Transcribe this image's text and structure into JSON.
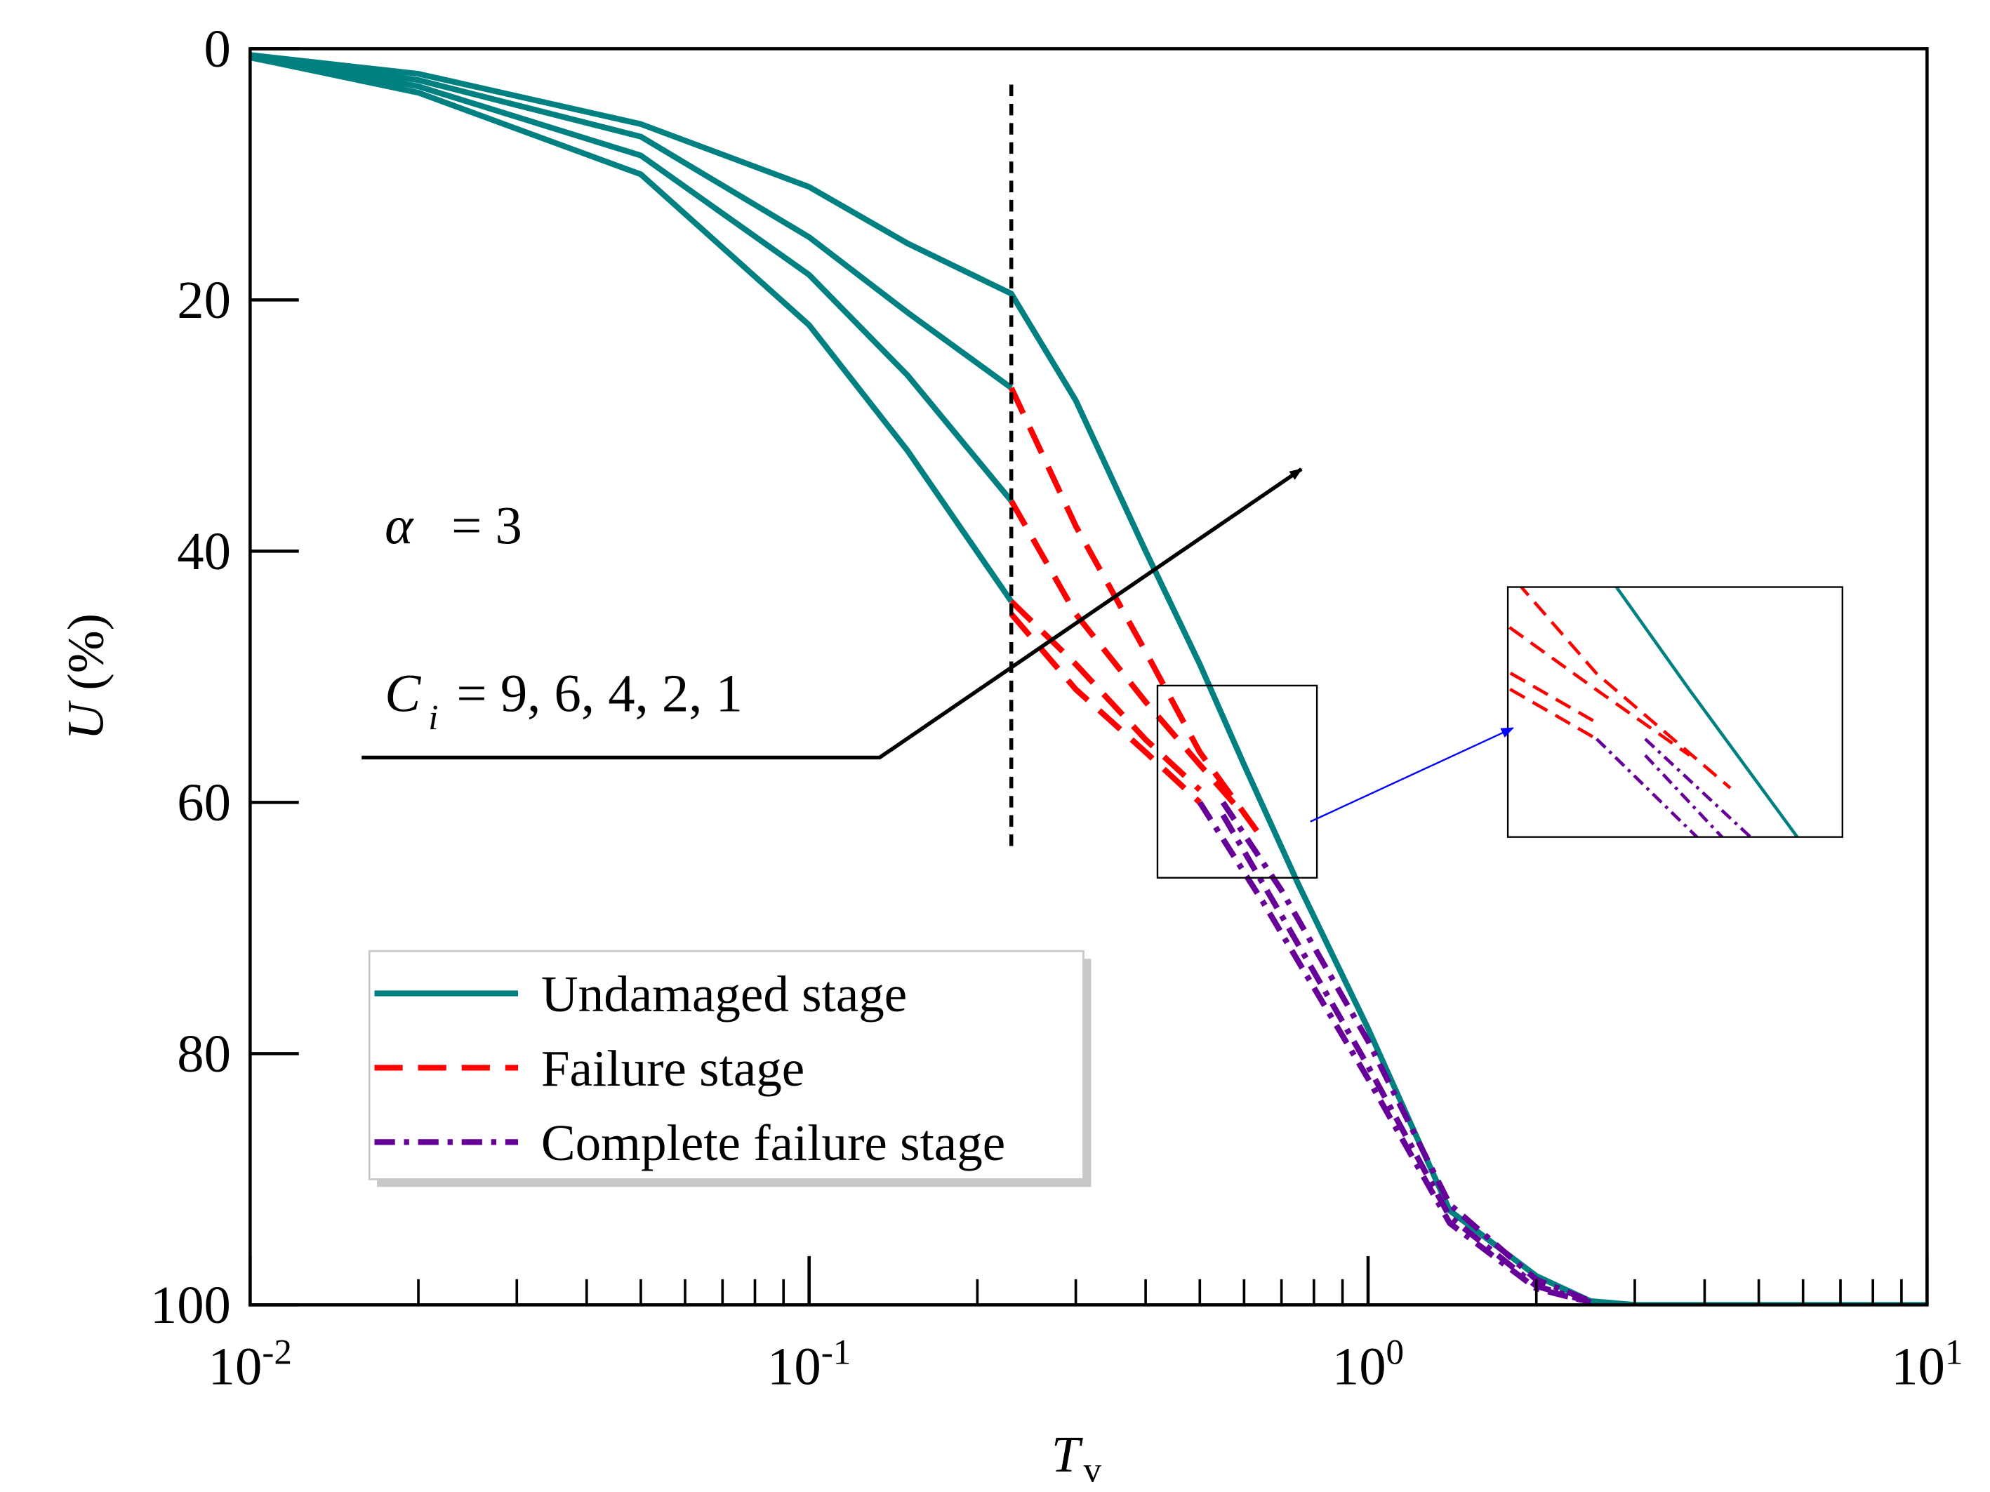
{
  "chart_data": {
    "type": "line",
    "xlabel": {
      "main": "T",
      "sub": "v"
    },
    "ylabel": {
      "main": "U",
      "rest": "(%)"
    },
    "xscale": "log",
    "xlim": [
      0.01,
      10
    ],
    "ylim": [
      0,
      100
    ],
    "y_inverted": true,
    "xticks": [
      {
        "value": 0.01,
        "label": "10",
        "exponent": "-2"
      },
      {
        "value": 0.1,
        "label": "10",
        "exponent": "-1"
      },
      {
        "value": 1,
        "label": "10",
        "exponent": "0"
      },
      {
        "value": 10,
        "label": "10",
        "exponent": "1"
      }
    ],
    "xminor": [
      0.02,
      0.03,
      0.04,
      0.05,
      0.06,
      0.07,
      0.08,
      0.09,
      0.2,
      0.3,
      0.4,
      0.5,
      0.6,
      0.7,
      0.8,
      0.9,
      2,
      3,
      4,
      5,
      6,
      7,
      8,
      9
    ],
    "yticks": [
      0,
      20,
      40,
      60,
      80,
      100
    ],
    "vline_x": 0.23,
    "annotations": {
      "alpha": "α",
      "alpha_value": "= 3",
      "c": "C",
      "c_sub": "i",
      "c_values": "= 9, 6, 4, 2, 1"
    },
    "zoom": {
      "xlim": [
        0.42,
        0.81
      ],
      "ylim": [
        50.7,
        66
      ]
    },
    "series": [
      {
        "name": "Undamaged stage",
        "color": "#008080",
        "dash": "solid",
        "curves": [
          {
            "x": [
              0.01,
              0.02,
              0.05,
              0.1,
              0.15,
              0.23,
              0.3,
              0.4,
              0.5,
              0.6,
              0.75,
              1.0,
              1.4,
              2,
              2.5,
              3,
              10
            ],
            "values": [
              0.5,
              2,
              6,
              11,
              15.5,
              19.5,
              28,
              40,
              49,
              57,
              66.5,
              78,
              92.5,
              97.7,
              99.7,
              100,
              100
            ]
          },
          {
            "x": [
              0.01,
              0.02,
              0.05,
              0.1,
              0.15,
              0.23
            ],
            "values": [
              0.5,
              2.5,
              7,
              15,
              21,
              27
            ]
          },
          {
            "x": [
              0.01,
              0.02,
              0.05,
              0.1,
              0.15,
              0.23
            ],
            "values": [
              0.6,
              3,
              8.5,
              18,
              26,
              36
            ]
          },
          {
            "x": [
              0.01,
              0.02,
              0.05,
              0.1,
              0.15,
              0.23
            ],
            "values": [
              0.7,
              3.5,
              10,
              22,
              32,
              44
            ]
          }
        ]
      },
      {
        "name": "Failure stage",
        "color": "#ff0000",
        "dash": "dash",
        "curves": [
          {
            "x": [
              0.23,
              0.3,
              0.4,
              0.5,
              0.65
            ],
            "values": [
              27,
              38,
              48,
              56,
              63
            ]
          },
          {
            "x": [
              0.23,
              0.3,
              0.4,
              0.5,
              0.6
            ],
            "values": [
              36,
              45,
              52,
              57,
              61
            ]
          },
          {
            "x": [
              0.23,
              0.3,
              0.4,
              0.5
            ],
            "values": [
              44,
              49,
              55,
              59
            ]
          },
          {
            "x": [
              0.23,
              0.3,
              0.4,
              0.5
            ],
            "values": [
              45,
              51,
              56,
              60
            ]
          }
        ]
      },
      {
        "name": "Complete failure stage",
        "color": "#660099",
        "dash": "dashdot",
        "curves": [
          {
            "x": [
              0.55,
              0.7,
              1,
              1.4,
              2,
              2.5
            ],
            "values": [
              60,
              67,
              79,
              92,
              98,
              99.7
            ]
          },
          {
            "x": [
              0.55,
              0.7,
              1,
              1.4,
              2,
              2.5
            ],
            "values": [
              61,
              69,
              81,
              93,
              98.5,
              99.8
            ]
          },
          {
            "x": [
              0.5,
              0.65,
              1,
              1.4,
              2,
              2.5
            ],
            "values": [
              60,
              68,
              82,
              93.5,
              98.7,
              99.8
            ]
          }
        ]
      }
    ]
  }
}
